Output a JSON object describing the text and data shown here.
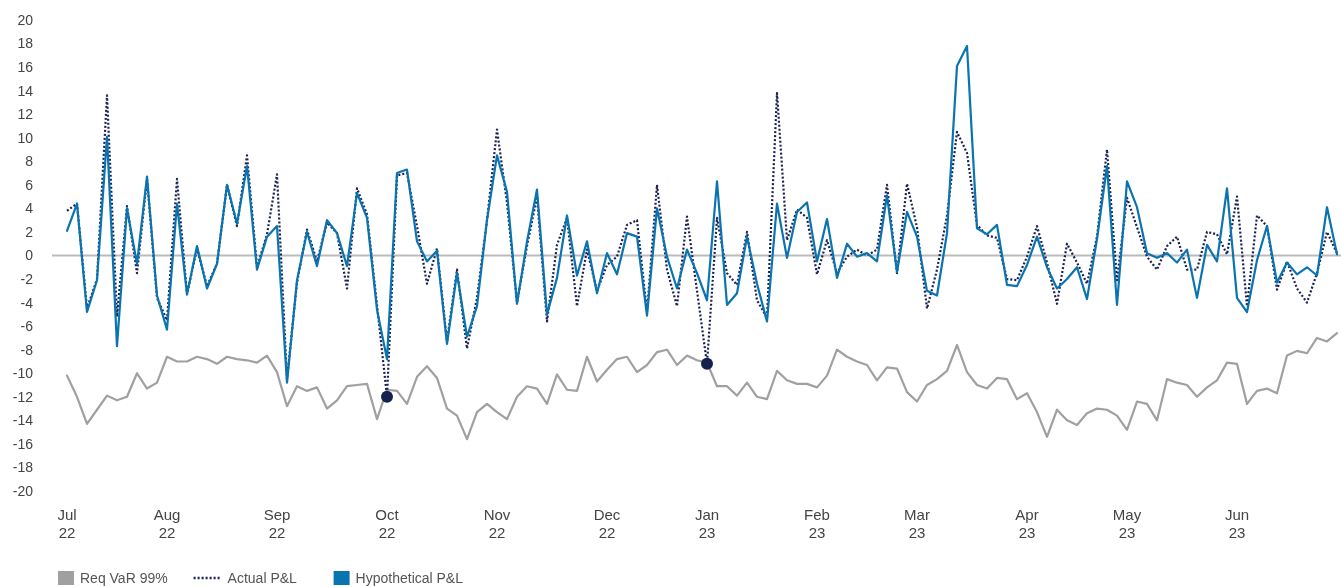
{
  "chart_data": {
    "type": "line",
    "categories": [
      "Jul 22",
      null,
      null,
      null,
      null,
      null,
      null,
      null,
      null,
      null,
      "Aug 22",
      null,
      null,
      null,
      null,
      null,
      null,
      null,
      null,
      null,
      null,
      "Sep 22",
      null,
      null,
      null,
      null,
      null,
      null,
      null,
      null,
      null,
      null,
      "Oct 22",
      null,
      null,
      null,
      null,
      null,
      null,
      null,
      null,
      null,
      null,
      "Nov 22",
      null,
      null,
      null,
      null,
      null,
      null,
      null,
      null,
      null,
      null,
      "Dec 22",
      null,
      null,
      null,
      null,
      null,
      null,
      null,
      null,
      null,
      "Jan 23",
      null,
      null,
      null,
      null,
      null,
      null,
      null,
      null,
      null,
      null,
      "Feb 23",
      null,
      null,
      null,
      null,
      null,
      null,
      null,
      null,
      null,
      "Mar 23",
      null,
      null,
      null,
      null,
      null,
      null,
      null,
      null,
      null,
      null,
      "Apr 23",
      null,
      null,
      null,
      null,
      null,
      null,
      null,
      null,
      null,
      "May 23",
      null,
      null,
      null,
      null,
      null,
      null,
      null,
      null,
      null,
      null,
      "Jun 23",
      null,
      null,
      null,
      null,
      null,
      null,
      null,
      null,
      null,
      null
    ],
    "series": [
      {
        "name": "Req VaR 99%",
        "color": "#a0a0a0",
        "line_style": "solid",
        "values": [
          -10.2,
          -12.0,
          -14.3,
          -13.1,
          -11.9,
          -12.3,
          -12.0,
          -10.0,
          -11.3,
          -10.8,
          -8.6,
          -9.0,
          -9.0,
          -8.6,
          -8.8,
          -9.2,
          -8.6,
          -8.8,
          -8.9,
          -9.1,
          -8.5,
          -9.9,
          -12.8,
          -11.1,
          -11.5,
          -11.2,
          -13.0,
          -12.3,
          -11.1,
          -11.0,
          -10.9,
          -13.9,
          -11.4,
          -11.5,
          -12.6,
          -10.3,
          -9.4,
          -10.4,
          -13.0,
          -13.6,
          -15.6,
          -13.3,
          -12.6,
          -13.3,
          -13.9,
          -12.0,
          -11.1,
          -11.3,
          -12.6,
          -10.1,
          -11.4,
          -11.5,
          -8.6,
          -10.7,
          -9.7,
          -8.8,
          -8.6,
          -9.9,
          -9.3,
          -8.2,
          -8.0,
          -9.3,
          -8.5,
          -8.9,
          -9.1,
          -11.1,
          -11.1,
          -11.9,
          -10.8,
          -12.0,
          -12.2,
          -9.8,
          -10.6,
          -10.9,
          -10.9,
          -11.2,
          -10.2,
          -8.0,
          -8.6,
          -9.0,
          -9.3,
          -10.6,
          -9.5,
          -9.6,
          -11.6,
          -12.4,
          -11.0,
          -10.5,
          -9.8,
          -7.6,
          -9.9,
          -11.0,
          -11.3,
          -10.4,
          -10.5,
          -12.2,
          -11.7,
          -13.3,
          -15.4,
          -13.1,
          -14.0,
          -14.4,
          -13.4,
          -13.0,
          -13.1,
          -13.6,
          -14.8,
          -12.4,
          -12.6,
          -14.0,
          -10.5,
          -10.8,
          -11.0,
          -12.0,
          -11.2,
          -10.6,
          -9.1,
          -9.2,
          -12.6,
          -11.5,
          -11.3,
          -11.7,
          -8.5,
          -8.1,
          -8.3,
          -7.0,
          -7.3,
          -6.6
        ]
      },
      {
        "name": "Actual P&L",
        "color": "#1b2155",
        "line_style": "dotted",
        "values": [
          3.8,
          4.4,
          -4.5,
          -2.0,
          13.6,
          -5.2,
          4.2,
          -1.5,
          6.5,
          -3.6,
          -5.5,
          6.5,
          -3.3,
          0.6,
          -2.6,
          -0.7,
          6.0,
          2.5,
          8.5,
          -1.0,
          1.8,
          6.9,
          -10.5,
          -2.3,
          2.2,
          -0.5,
          2.8,
          1.9,
          -2.8,
          5.7,
          3.5,
          -4.2,
          -12.0,
          6.8,
          7.0,
          2.5,
          -2.4,
          0.6,
          -7.3,
          -1.2,
          -7.9,
          -3.6,
          3.0,
          10.7,
          4.5,
          -4.0,
          0.8,
          5.0,
          -5.6,
          0.9,
          3.2,
          -4.3,
          0.5,
          -3.0,
          -0.8,
          -0.1,
          2.6,
          3.0,
          -4.8,
          6.0,
          -1.2,
          -4.3,
          3.3,
          -3.0,
          -9.2,
          3.2,
          -1.5,
          -2.5,
          2.0,
          -3.8,
          -5.3,
          13.8,
          1.3,
          3.9,
          3.2,
          -1.6,
          1.3,
          -1.5,
          -0.1,
          0.5,
          0.0,
          0.5,
          6.0,
          -1.5,
          6.1,
          2.4,
          -4.5,
          -1.2,
          3.4,
          10.5,
          8.7,
          2.6,
          1.7,
          1.5,
          -2.0,
          -2.1,
          -0.1,
          2.5,
          -0.6,
          -4.1,
          1.0,
          -0.6,
          -2.4,
          1.6,
          9.0,
          -2.1,
          4.9,
          2.4,
          -0.1,
          -1.2,
          0.8,
          1.6,
          -1.2,
          -1.2,
          2.0,
          1.8,
          0.1,
          5.0,
          -4.3,
          3.4,
          2.5,
          -2.9,
          -0.5,
          -2.8,
          -4.0,
          -1.5,
          2.0,
          0.2
        ]
      },
      {
        "name": "Hypothetical P&L",
        "color": "#0a74b0",
        "line_style": "solid",
        "values": [
          2.1,
          4.4,
          -4.8,
          -2.1,
          10.1,
          -7.7,
          4.0,
          -0.7,
          6.7,
          -3.4,
          -6.3,
          4.4,
          -3.3,
          0.8,
          -2.8,
          -0.7,
          6.0,
          2.7,
          7.6,
          -1.2,
          1.6,
          2.5,
          -10.8,
          -2.1,
          2.0,
          -0.9,
          3.0,
          1.9,
          -0.9,
          5.3,
          3.2,
          -4.6,
          -8.8,
          7.0,
          7.3,
          1.2,
          -0.5,
          0.4,
          -7.5,
          -1.5,
          -6.9,
          -4.3,
          3.0,
          8.5,
          5.4,
          -4.1,
          1.2,
          5.6,
          -5.0,
          -1.9,
          3.4,
          -1.7,
          1.2,
          -3.2,
          0.2,
          -1.6,
          1.9,
          1.6,
          -5.1,
          4.0,
          -0.1,
          -2.8,
          0.5,
          -1.5,
          -3.8,
          6.3,
          -4.2,
          -3.2,
          1.6,
          -2.4,
          -5.6,
          4.4,
          -0.2,
          3.7,
          4.5,
          -0.5,
          3.1,
          -1.9,
          1.0,
          -0.1,
          0.2,
          -0.5,
          5.1,
          -1.4,
          3.7,
          1.6,
          -3.0,
          -3.4,
          1.9,
          16.1,
          17.8,
          2.3,
          1.8,
          2.6,
          -2.5,
          -2.6,
          -0.8,
          1.6,
          -1.0,
          -2.8,
          -2.0,
          -1.0,
          -3.7,
          1.4,
          7.6,
          -4.2,
          6.3,
          4.1,
          0.2,
          -0.2,
          0.2,
          -0.6,
          0.5,
          -3.6,
          0.9,
          -0.5,
          5.7,
          -3.6,
          -4.8,
          -0.4,
          2.5,
          -2.3,
          -0.6,
          -1.6,
          -1.0,
          -1.7,
          4.1,
          0.1
        ]
      },
      {
        "type": "scatter",
        "color": "#16204f",
        "marker": "circle",
        "values": [
          null,
          null,
          null,
          null,
          null,
          null,
          null,
          null,
          null,
          null,
          null,
          null,
          null,
          null,
          null,
          null,
          null,
          null,
          null,
          null,
          null,
          null,
          null,
          null,
          null,
          null,
          null,
          null,
          null,
          null,
          null,
          null,
          -12.0,
          null,
          null,
          null,
          null,
          null,
          null,
          null,
          null,
          null,
          null,
          null,
          null,
          null,
          null,
          null,
          null,
          null,
          null,
          null,
          null,
          null,
          null,
          null,
          null,
          null,
          null,
          null,
          null,
          null,
          null,
          null,
          -9.2,
          null,
          null,
          null,
          null,
          null,
          null,
          null,
          null,
          null,
          null,
          null,
          null,
          null,
          null,
          null,
          null,
          null,
          null,
          null,
          null,
          null,
          null,
          null,
          null,
          null,
          null,
          null,
          null,
          null,
          null,
          null,
          null,
          null,
          null,
          null,
          null,
          null,
          null,
          null,
          null,
          null,
          null,
          null,
          null,
          null,
          null,
          null,
          null,
          null,
          null,
          null,
          null,
          null,
          null,
          null,
          null,
          null,
          null,
          null,
          null,
          null,
          null,
          null
        ]
      }
    ],
    "ylim": [
      -20,
      20
    ],
    "yticks": [
      -20,
      -18,
      -16,
      -14,
      -12,
      -10,
      -8,
      -6,
      -4,
      -2,
      0,
      2,
      4,
      6,
      8,
      10,
      12,
      14,
      16,
      18,
      20
    ],
    "ref_lines": [
      {
        "axis": "y",
        "value": 0,
        "color": "#bbbbbb"
      }
    ],
    "grid": false,
    "legend": "bottom left"
  }
}
